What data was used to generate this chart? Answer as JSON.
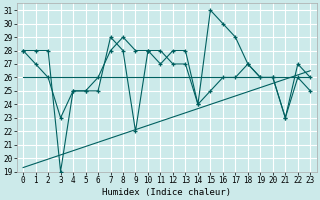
{
  "xlabel": "Humidex (Indice chaleur)",
  "bg_color": "#cceaea",
  "grid_color": "#ffffff",
  "line_color": "#006060",
  "xlim": [
    -0.5,
    23.5
  ],
  "ylim": [
    19,
    31.5
  ],
  "yticks": [
    19,
    20,
    21,
    22,
    23,
    24,
    25,
    26,
    27,
    28,
    29,
    30,
    31
  ],
  "xticks": [
    0,
    1,
    2,
    3,
    4,
    5,
    6,
    7,
    8,
    9,
    10,
    11,
    12,
    13,
    14,
    15,
    16,
    17,
    18,
    19,
    20,
    21,
    22,
    23
  ],
  "series1_x": [
    0,
    1,
    2,
    3,
    4,
    5,
    6,
    7,
    8,
    9,
    10,
    11,
    12,
    13,
    14,
    15,
    16,
    17,
    18,
    19,
    20,
    21,
    22,
    23
  ],
  "series1_y": [
    28,
    28,
    28,
    19,
    25,
    25,
    25,
    29,
    28,
    22,
    28,
    28,
    27,
    27,
    24,
    31,
    30,
    29,
    27,
    26,
    26,
    23,
    27,
    26
  ],
  "series2_x": [
    0,
    1,
    2,
    3,
    4,
    5,
    6,
    7,
    8,
    9,
    10,
    11,
    12,
    13,
    14,
    15,
    16,
    17,
    18,
    19,
    20,
    21,
    22,
    23
  ],
  "series2_y": [
    28,
    27,
    26,
    23,
    25,
    25,
    26,
    28,
    29,
    28,
    28,
    27,
    28,
    28,
    24,
    25,
    26,
    26,
    27,
    26,
    26,
    23,
    26,
    25
  ],
  "series3_x": [
    0,
    1,
    2,
    3,
    4,
    5,
    6,
    7,
    8,
    9,
    10,
    11,
    12,
    13,
    14,
    15,
    16,
    17,
    18,
    19,
    20,
    21,
    22,
    23
  ],
  "series3_y": [
    26,
    26,
    26,
    26,
    26,
    26,
    26,
    26,
    26,
    26,
    26,
    26,
    26,
    26,
    26,
    26,
    26,
    26,
    26,
    26,
    26,
    26,
    26,
    26
  ],
  "trend_x": [
    0,
    23
  ],
  "trend_y": [
    19.3,
    26.5
  ],
  "title_fontsize": 7,
  "xlabel_fontsize": 6.5,
  "tick_fontsize": 5.5
}
